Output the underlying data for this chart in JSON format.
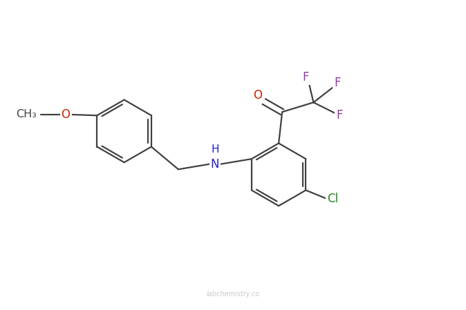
{
  "background_color": "#ffffff",
  "bond_color": "#404040",
  "atom_colors": {
    "O": "#cc2200",
    "N": "#2222cc",
    "F": "#9933aa",
    "Cl": "#228822",
    "H": "#404040",
    "C": "#404040"
  },
  "font_size": 12,
  "watermark": "labchemistry.co",
  "figsize": [
    6.74,
    4.49
  ],
  "dpi": 100
}
